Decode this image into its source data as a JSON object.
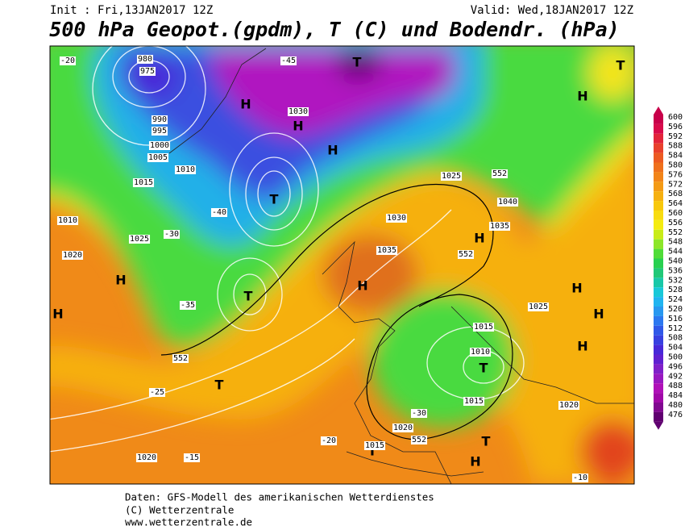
{
  "header": {
    "init": "Init : Fri,13JAN2017 12Z",
    "valid": "Valid: Wed,18JAN2017 12Z",
    "title": "500 hPa Geopot.(gpdm), T (C) und Bodendr. (hPa)"
  },
  "legend": {
    "levels": [
      600,
      596,
      592,
      588,
      584,
      580,
      576,
      572,
      568,
      564,
      560,
      556,
      552,
      548,
      544,
      540,
      536,
      532,
      528,
      524,
      520,
      516,
      512,
      508,
      504,
      500,
      496,
      492,
      488,
      484,
      480,
      476
    ],
    "colors": [
      "#c8004a",
      "#d80a4a",
      "#e2243a",
      "#e8402c",
      "#ec5a22",
      "#ef701c",
      "#f28418",
      "#f49a14",
      "#f6b010",
      "#f8c80c",
      "#f8dc10",
      "#f4ec10",
      "#c8ec18",
      "#8ce628",
      "#50dc38",
      "#28d050",
      "#20c878",
      "#18c8a8",
      "#18c8d8",
      "#20b4f0",
      "#2898f0",
      "#2c78f0",
      "#3058e8",
      "#3840e0",
      "#4828d8",
      "#6020d0",
      "#8020c8",
      "#9818c0",
      "#b010b8",
      "#a008a8",
      "#800890",
      "#600070"
    ]
  },
  "map_labels": [
    "H",
    "H",
    "H",
    "H",
    "H",
    "H",
    "H",
    "H",
    "H",
    "H",
    "H",
    "H",
    "T",
    "T",
    "T",
    "T",
    "T",
    "T",
    "T",
    "T",
    "980",
    "975",
    "990",
    "995",
    "1000",
    "1005",
    "1010",
    "1015",
    "1010",
    "1025",
    "1020",
    "1030",
    "1035",
    "1030",
    "1035",
    "1040",
    "1025",
    "1015",
    "1010",
    "1015",
    "1020",
    "1025",
    "1020",
    "1015",
    "1020",
    "-20",
    "-25",
    "-30",
    "-35",
    "-40",
    "-45",
    "-30",
    "-20",
    "-15",
    "-10",
    "552",
    "552",
    "552",
    "552"
  ],
  "footer": {
    "line1": "Daten: GFS-Modell des amerikanischen Wetterdienstes",
    "line2": "(C) Wetterzentrale",
    "line3": "www.wetterzentrale.de"
  }
}
